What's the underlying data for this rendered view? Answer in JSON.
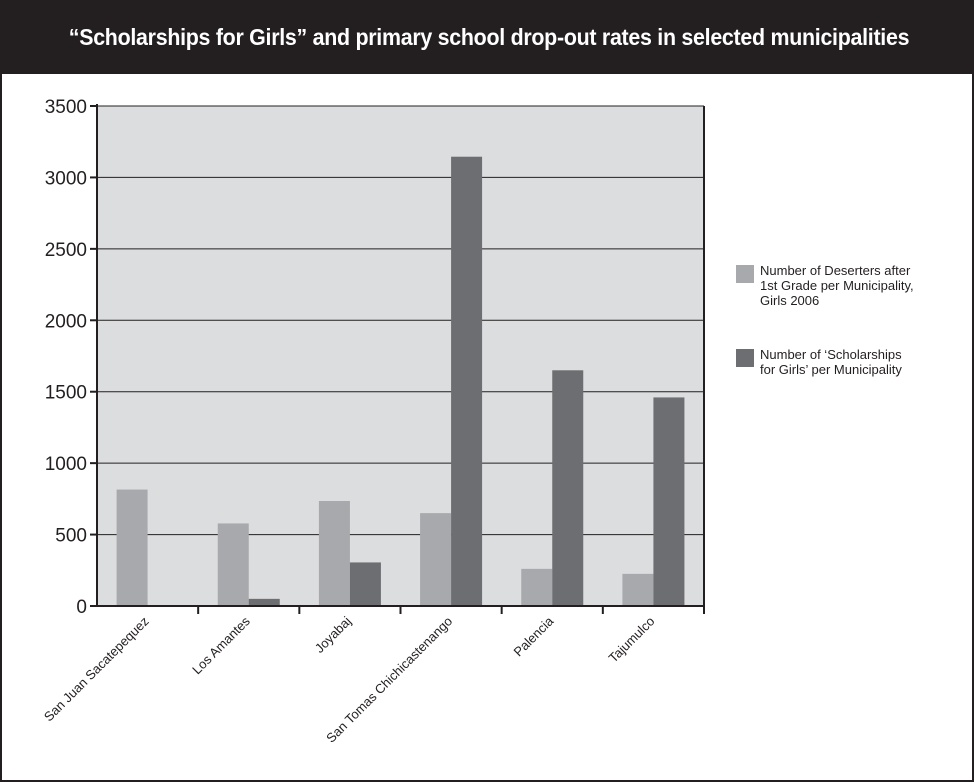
{
  "chart_data": {
    "type": "bar",
    "title": "“Scholarships for Girls” and primary school drop-out rates in selected municipalities",
    "categories": [
      "San Juan Sacatepequez",
      "Los Amantes",
      "Joyabaj",
      "San Tomas Chichicastenango",
      "Palencia",
      "Tajumulco"
    ],
    "series": [
      {
        "name": "Number of Deserters after 1st Grade per Municipality, Girls 2006",
        "legend_lines": [
          "Number of Deserters after",
          "1st Grade per Municipality,",
          "Girls 2006"
        ],
        "color": "#a7a9ac",
        "values": [
          815,
          578,
          735,
          650,
          260,
          225
        ]
      },
      {
        "name": "Number of ‘Scholarships for Girls’ per Municipality",
        "legend_lines": [
          "Number of ‘Scholarships",
          "for Girls’ per Municipality"
        ],
        "color": "#6d6e71",
        "values": [
          0,
          50,
          305,
          3145,
          1650,
          1460
        ]
      }
    ],
    "ylim": [
      0,
      3500
    ],
    "yticks": [
      0,
      500,
      1000,
      1500,
      2000,
      2500,
      3000,
      3500
    ],
    "grid": true,
    "legend_position": "right",
    "xlabel": "",
    "ylabel": ""
  },
  "colors": {
    "header_bg": "#231f20",
    "plot_bg": "#dcdddf",
    "axis": "#231f20"
  }
}
